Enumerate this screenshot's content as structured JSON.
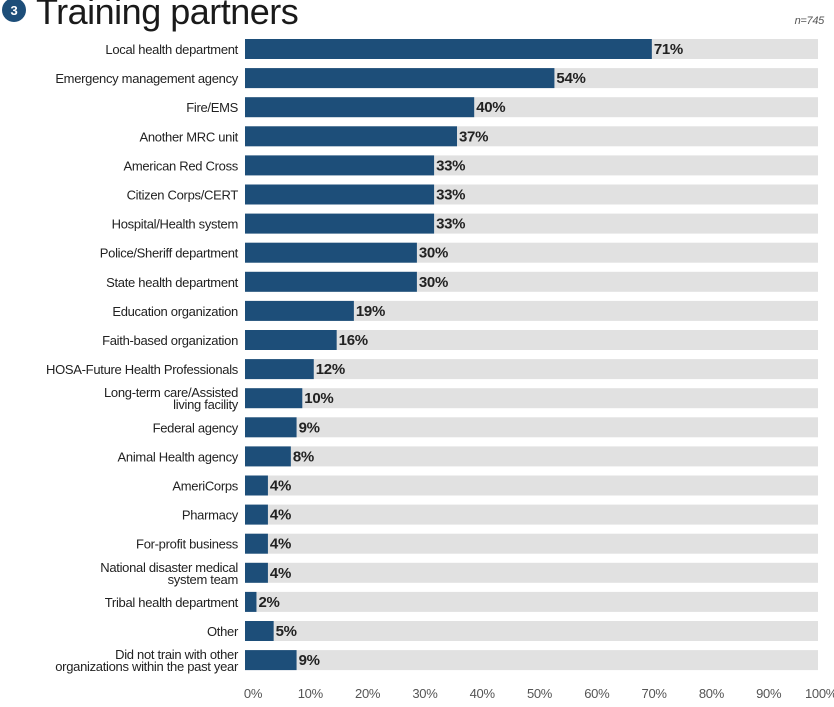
{
  "chart_data": {
    "type": "bar",
    "orientation": "horizontal",
    "badge": "3",
    "title": "Training partners",
    "subtitle": "n=745",
    "categories": [
      "Local health department",
      "Emergency management agency",
      "Fire/EMS",
      "Another MRC unit",
      "American Red Cross",
      "Citizen Corps/CERT",
      "Hospital/Health system",
      "Police/Sheriff department",
      "State health department",
      "Education organization",
      "Faith-based organization",
      "HOSA-Future Health Professionals",
      "Long-term care/Assisted\nliving facility",
      "Federal agency",
      "Animal Health agency",
      "AmeriCorps",
      "Pharmacy",
      "For-profit business",
      "National disaster medical\nsystem team",
      "Tribal health department",
      "Other",
      "Did not train with other\norganizations within the past year"
    ],
    "values": [
      71,
      54,
      40,
      37,
      33,
      33,
      33,
      30,
      30,
      19,
      16,
      12,
      10,
      9,
      8,
      4,
      4,
      4,
      4,
      2,
      5,
      9
    ],
    "value_labels": [
      "71%",
      "54%",
      "40%",
      "37%",
      "33%",
      "33%",
      "33%",
      "30%",
      "30%",
      "19%",
      "16%",
      "12%",
      "10%",
      "9%",
      "8%",
      "4%",
      "4%",
      "4%",
      "4%",
      "2%",
      "5%",
      "9%"
    ],
    "color": "#1d4e79",
    "track_color": "#e1e1e1",
    "xlim": [
      0,
      100
    ],
    "xticks": [
      {
        "value": 0,
        "label": "0%"
      },
      {
        "value": 10,
        "label": "10%"
      },
      {
        "value": 20,
        "label": "20%"
      },
      {
        "value": 30,
        "label": "30%"
      },
      {
        "value": 40,
        "label": "40%"
      },
      {
        "value": 50,
        "label": "50%"
      },
      {
        "value": 60,
        "label": "60%"
      },
      {
        "value": 70,
        "label": "70%"
      },
      {
        "value": 80,
        "label": "80%"
      },
      {
        "value": 90,
        "label": "90%"
      },
      {
        "value": 100,
        "label": "100%"
      }
    ]
  }
}
